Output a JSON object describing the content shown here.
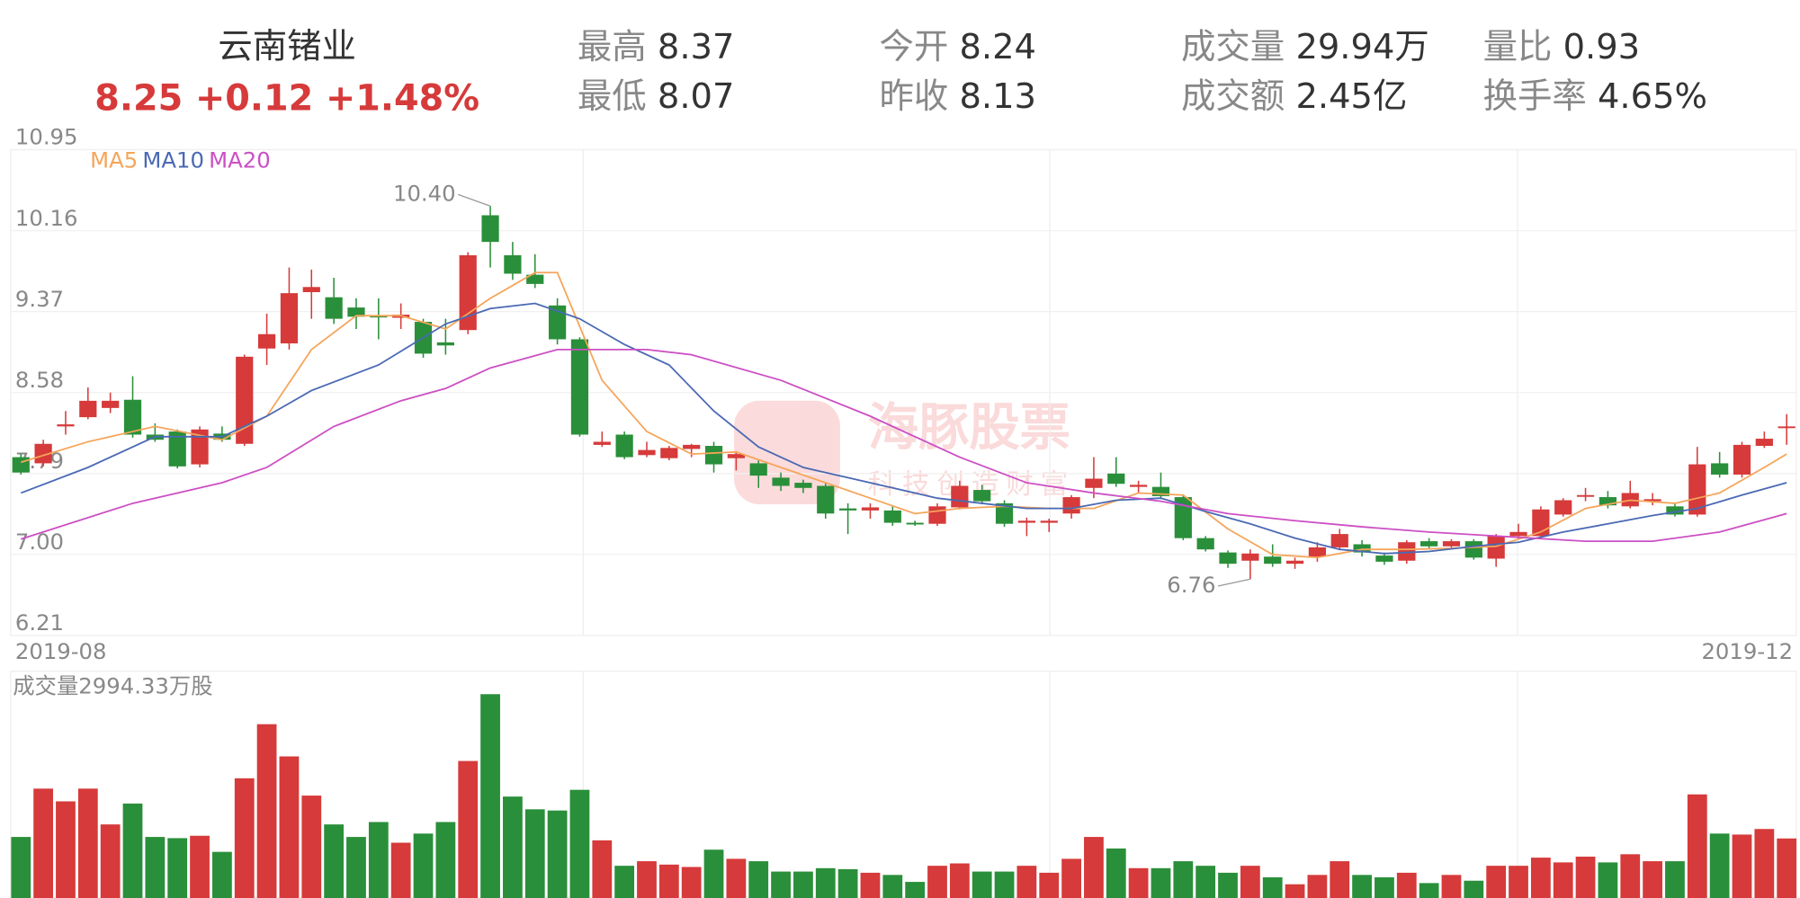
{
  "header": {
    "name": "云南锗业",
    "price": "8.25",
    "change": "+0.12",
    "pct": "+1.48%",
    "stats": [
      [
        "最高",
        "8.37"
      ],
      [
        "最低",
        "8.07"
      ],
      [
        "今开",
        "8.24"
      ],
      [
        "昨收",
        "8.13"
      ],
      [
        "成交量",
        "29.94万"
      ],
      [
        "成交额",
        "2.45亿"
      ],
      [
        "量比",
        "0.93"
      ],
      [
        "换手率",
        "4.65%"
      ]
    ]
  },
  "watermark": {
    "title": "海豚股票",
    "subtitle": "科技创造财富"
  },
  "chart_data": {
    "type": "candlestick",
    "up_color": "#d63a3a",
    "down_color": "#2a8f3a",
    "ylim": [
      6.21,
      10.95
    ],
    "yticks": [
      10.95,
      10.16,
      9.37,
      8.58,
      {
        "value": 7.79,
        "label": "7.79"
      },
      {
        "value": 7,
        "label": "7.00"
      },
      6.21
    ],
    "xlabels": [
      "2019-08",
      "2019-12"
    ],
    "open": [
      7.95,
      7.89,
      8.25,
      8.34,
      8.43,
      8.51,
      8.17,
      8.2,
      7.88,
      8.18,
      8.08,
      9.01,
      9.06,
      9.56,
      9.51,
      9.41,
      9.33,
      9.31,
      9.27,
      9.07,
      9.19,
      10.31,
      9.92,
      9.73,
      9.43,
      9.1,
      8.07,
      8.17,
      7.97,
      7.94,
      8.03,
      8.06,
      7.94,
      7.89,
      7.75,
      7.7,
      7.67,
      7.45,
      7.43,
      7.43,
      7.31,
      7.3,
      7.46,
      7.63,
      7.5,
      7.31,
      7.31,
      7.4,
      7.65,
      7.79,
      7.66,
      7.66,
      7.56,
      7.16,
      7.02,
      6.94,
      6.98,
      6.91,
      6.98,
      7.07,
      7.1,
      6.99,
      6.94,
      7.13,
      7.08,
      7.13,
      6.96,
      7.18,
      7.18,
      7.39,
      7.57,
      7.56,
      7.47,
      7.52,
      7.47,
      7.39,
      7.89,
      7.78,
      8.06,
      8.24
    ],
    "high": [
      7.98,
      8.12,
      8.4,
      8.63,
      8.58,
      8.74,
      8.28,
      8.22,
      8.25,
      8.25,
      8.95,
      9.35,
      9.8,
      9.78,
      9.7,
      9.5,
      9.5,
      9.45,
      9.3,
      9.3,
      9.95,
      10.4,
      10.05,
      9.93,
      9.5,
      9.12,
      8.2,
      8.2,
      8.1,
      8.06,
      8.08,
      8.1,
      8.0,
      7.92,
      7.8,
      7.73,
      7.7,
      7.5,
      7.5,
      7.47,
      7.33,
      7.5,
      7.72,
      7.68,
      7.53,
      7.36,
      7.35,
      7.58,
      7.95,
      7.95,
      7.72,
      7.8,
      7.58,
      7.18,
      7.04,
      7.05,
      7.1,
      6.97,
      7.12,
      7.25,
      7.14,
      7.02,
      7.14,
      7.16,
      7.15,
      7.15,
      7.2,
      7.3,
      7.47,
      7.55,
      7.65,
      7.62,
      7.72,
      7.6,
      7.5,
      8.05,
      8.0,
      8.1,
      8.2,
      8.37
    ],
    "low": [
      7.78,
      7.86,
      8.17,
      8.32,
      8.38,
      8.14,
      8.1,
      7.84,
      7.85,
      8.1,
      8.06,
      8.85,
      9.0,
      9.3,
      9.25,
      9.2,
      9.1,
      9.2,
      8.92,
      8.95,
      9.15,
      9.8,
      9.68,
      9.6,
      9.05,
      8.15,
      8.05,
      7.93,
      7.95,
      7.92,
      7.95,
      7.8,
      7.82,
      7.65,
      7.62,
      7.6,
      7.35,
      7.2,
      7.35,
      7.28,
      7.28,
      7.28,
      7.44,
      7.5,
      7.27,
      7.18,
      7.22,
      7.35,
      7.55,
      7.66,
      7.6,
      7.54,
      7.14,
      7.03,
      6.87,
      6.76,
      6.88,
      6.86,
      6.93,
      7.05,
      6.98,
      6.9,
      6.91,
      7.05,
      7.06,
      6.95,
      6.88,
      7.15,
      7.15,
      7.37,
      7.52,
      7.45,
      7.45,
      7.48,
      7.37,
      7.37,
      7.75,
      7.75,
      8.04,
      8.07
    ],
    "close": [
      7.8,
      8.08,
      8.27,
      8.5,
      8.5,
      8.17,
      8.12,
      7.86,
      8.22,
      8.12,
      8.93,
      9.15,
      9.55,
      9.61,
      9.3,
      9.32,
      9.32,
      9.34,
      8.96,
      9.04,
      9.92,
      10.05,
      9.74,
      9.64,
      9.1,
      8.17,
      8.1,
      7.95,
      8.02,
      8.04,
      8.07,
      7.88,
      7.98,
      7.77,
      7.67,
      7.65,
      7.4,
      7.43,
      7.46,
      7.31,
      7.3,
      7.47,
      7.67,
      7.52,
      7.3,
      7.33,
      7.33,
      7.56,
      7.74,
      7.69,
      7.68,
      7.57,
      7.16,
      7.05,
      6.91,
      7.01,
      6.91,
      6.94,
      7.07,
      7.2,
      7.02,
      6.93,
      7.12,
      7.08,
      7.13,
      6.97,
      7.18,
      7.22,
      7.44,
      7.53,
      7.58,
      7.48,
      7.6,
      7.54,
      7.39,
      7.88,
      7.78,
      8.07,
      8.13,
      8.25
    ],
    "volume": [
      3070,
      5500,
      4860,
      5500,
      3700,
      4750,
      3070,
      3010,
      3130,
      2320,
      6020,
      8740,
      7120,
      5150,
      3700,
      3070,
      3820,
      2780,
      3240,
      3820,
      6890,
      10250,
      5100,
      4460,
      4400,
      5440,
      2900,
      1620,
      1850,
      1680,
      1560,
      2430,
      1970,
      1850,
      1330,
      1330,
      1500,
      1450,
      1270,
      1160,
      810,
      1620,
      1740,
      1330,
      1330,
      1620,
      1270,
      1970,
      3070,
      2490,
      1500,
      1500,
      1850,
      1620,
      1270,
      1620,
      1040,
      690,
      1160,
      1850,
      1160,
      1040,
      1270,
      750,
      1160,
      870,
      1620,
      1620,
      2030,
      1790,
      2080,
      1790,
      2200,
      1850,
      1850,
      5210,
      3240,
      3190,
      3470,
      2994.33
    ],
    "vlim": [
      0,
      11000
    ],
    "volume_title": "成交量2994.33万股",
    "annotations": [
      {
        "text": "10.40",
        "index": 21,
        "value": 10.4
      },
      {
        "text": "6.76",
        "index": 55,
        "value": 6.76
      }
    ],
    "series": [
      {
        "name": "MA5",
        "color": "#f5a55a",
        "x": [
          0,
          3,
          6,
          9,
          11,
          13,
          15,
          17,
          19,
          21,
          23,
          24,
          26,
          28,
          30,
          32,
          34,
          36,
          38,
          40,
          42,
          44,
          46,
          48,
          50,
          52,
          54,
          56,
          58,
          60,
          62,
          64,
          66,
          68,
          70,
          72,
          74,
          76,
          78,
          79
        ],
        "values": [
          7.9,
          8.1,
          8.25,
          8.12,
          8.35,
          9.0,
          9.33,
          9.33,
          9.2,
          9.5,
          9.75,
          9.75,
          8.7,
          8.2,
          7.98,
          8.0,
          7.85,
          7.7,
          7.55,
          7.4,
          7.45,
          7.47,
          7.45,
          7.45,
          7.6,
          7.58,
          7.25,
          7.0,
          6.97,
          7.05,
          7.05,
          7.06,
          7.08,
          7.22,
          7.45,
          7.53,
          7.5,
          7.6,
          7.85,
          7.98
        ]
      },
      {
        "name": "MA10",
        "color": "#4a69b4",
        "x": [
          0,
          3,
          6,
          9,
          11,
          13,
          16,
          19,
          21,
          23,
          25,
          27,
          29,
          31,
          33,
          35,
          37,
          39,
          41,
          43,
          45,
          47,
          49,
          51,
          53,
          55,
          57,
          59,
          61,
          63,
          65,
          67,
          69,
          71,
          73,
          75,
          77,
          79
        ],
        "values": [
          7.6,
          7.85,
          8.15,
          8.15,
          8.35,
          8.6,
          8.85,
          9.25,
          9.4,
          9.45,
          9.3,
          9.05,
          8.85,
          8.4,
          8.05,
          7.85,
          7.75,
          7.65,
          7.55,
          7.5,
          7.45,
          7.45,
          7.53,
          7.55,
          7.42,
          7.3,
          7.16,
          7.05,
          7.01,
          7.03,
          7.08,
          7.12,
          7.22,
          7.3,
          7.38,
          7.45,
          7.58,
          7.7
        ]
      },
      {
        "name": "MA20",
        "color": "#cc4fc4",
        "x": [
          0,
          5,
          9,
          11,
          14,
          17,
          19,
          21,
          24,
          28,
          30,
          34,
          38,
          42,
          45,
          48,
          51,
          54,
          57,
          60,
          63,
          66,
          70,
          73,
          76,
          79
        ],
        "values": [
          7.15,
          7.5,
          7.7,
          7.85,
          8.25,
          8.5,
          8.62,
          8.82,
          9.0,
          9.0,
          8.95,
          8.7,
          8.35,
          7.95,
          7.7,
          7.6,
          7.52,
          7.4,
          7.33,
          7.27,
          7.22,
          7.18,
          7.13,
          7.13,
          7.22,
          7.4
        ]
      }
    ]
  }
}
